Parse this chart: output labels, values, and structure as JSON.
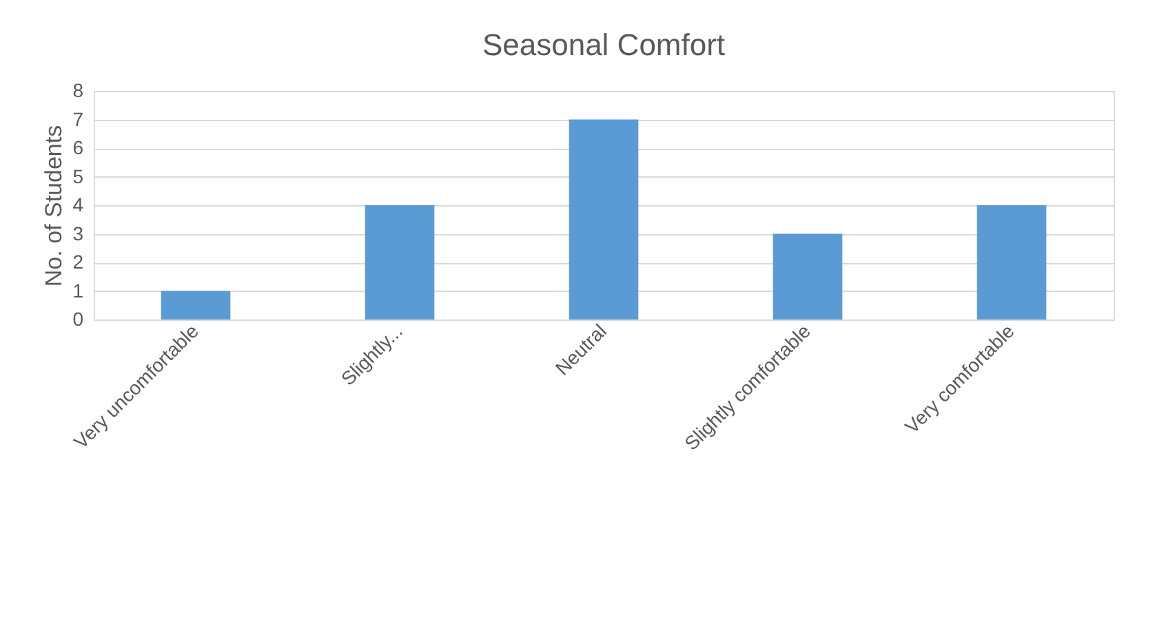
{
  "chart_data": {
    "type": "bar",
    "title": "Seasonal Comfort",
    "ylabel": "No. of Students",
    "categories": [
      "Very uncomfortable",
      "Slightly...",
      "Neutral",
      "Slightly comfortable",
      "Very comfortable"
    ],
    "values": [
      1,
      4,
      7,
      3,
      4
    ],
    "color": "#5b9bd5",
    "ylim": [
      0,
      8
    ],
    "yticks": [
      0,
      1,
      2,
      3,
      4,
      5,
      6,
      7,
      8
    ],
    "grid": "y"
  }
}
